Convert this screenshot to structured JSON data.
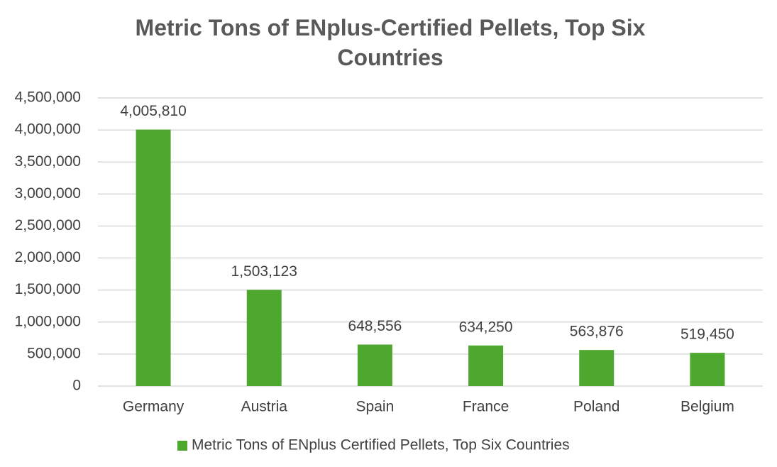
{
  "chart_data": {
    "type": "bar",
    "title": "Metric Tons of ENplus-Certified Pellets, Top Six Countries",
    "categories": [
      "Germany",
      "Austria",
      "Spain",
      "France",
      "Poland",
      "Belgium"
    ],
    "series": [
      {
        "name": "Metric Tons of ENplus Certified Pellets, Top Six Countries",
        "color": "#4ea72e",
        "values": [
          4005810,
          1503123,
          648556,
          634250,
          563876,
          519450
        ],
        "value_labels": [
          "4,005,810",
          "1,503,123",
          "648,556",
          "634,250",
          "563,876",
          "519,450"
        ]
      }
    ],
    "ylim": [
      0,
      4500000
    ],
    "yticks": [
      0,
      {
        "value": 500000,
        "label": "500,000"
      },
      {
        "value": 1000000,
        "label": "1,000,000"
      },
      {
        "value": 1500000,
        "label": "1,500,000"
      },
      {
        "value": 2000000,
        "label": "2,000,000"
      },
      {
        "value": 2500000,
        "label": "2,500,000"
      },
      {
        "value": 3000000,
        "label": "3,000,000"
      },
      {
        "value": 3500000,
        "label": "3,500,000"
      },
      {
        "value": 4000000,
        "label": "4,000,000"
      },
      {
        "value": 4500000,
        "label": "4,500,000"
      }
    ],
    "grid": true,
    "legend": "bottom"
  }
}
